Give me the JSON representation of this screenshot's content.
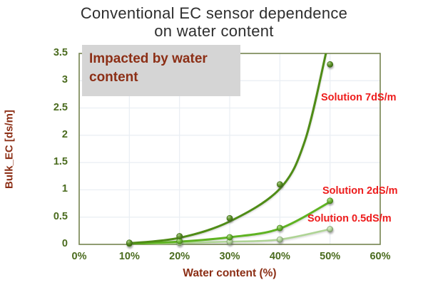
{
  "title": {
    "line1": "Conventional EC sensor dependence",
    "line2": "on water content"
  },
  "annotation": {
    "text": "Impacted by water content"
  },
  "colors": {
    "title_text": "#2e2e2e",
    "axis_title_maroon": "#8c2f16",
    "tick_olive": "#4a6b1e",
    "series_label_red": "#ee1c1c",
    "plot_border": "#75844f",
    "gridline": "#e9eef3",
    "annotation_bg": "#d5d5d5"
  },
  "chart_data": {
    "type": "scatter",
    "title": "Conventional EC sensor dependence on water content",
    "xlabel": "Water content (%)",
    "ylabel": "Bulk_EC [ds/m]",
    "xlim": [
      0,
      60
    ],
    "ylim": [
      0,
      3.5
    ],
    "grid": true,
    "x_ticks": [
      "0%",
      "10%",
      "20%",
      "30%",
      "40%",
      "50%",
      "60%"
    ],
    "y_ticks": [
      "3.5",
      "3",
      "2.5",
      "2",
      "1.5",
      "1",
      "0.5",
      "0"
    ],
    "x": [
      10,
      20,
      30,
      40,
      50
    ],
    "series": [
      {
        "name": "Solution 7dS/m",
        "color": "#4f8c14",
        "line_width": 3,
        "values": [
          0.03,
          0.15,
          0.48,
          1.1,
          3.3
        ],
        "trend": [
          [
            10,
            0.02
          ],
          [
            20,
            0.12
          ],
          [
            30,
            0.42
          ],
          [
            40,
            1.02
          ],
          [
            45,
            1.9
          ],
          [
            49.3,
            3.55
          ]
        ]
      },
      {
        "name": "Solution 2dS/m",
        "color": "#5fb321",
        "line_width": 3,
        "values": [
          0.02,
          0.06,
          0.13,
          0.3,
          0.8
        ],
        "trend": [
          [
            10,
            0.01
          ],
          [
            20,
            0.05
          ],
          [
            30,
            0.13
          ],
          [
            40,
            0.29
          ],
          [
            50,
            0.78
          ]
        ]
      },
      {
        "name": "Solution 0.5dS/m",
        "color": "#aed494",
        "line_width": 2.5,
        "values": [
          0.01,
          0.03,
          0.05,
          0.09,
          0.28
        ],
        "trend": [
          [
            10,
            0.005
          ],
          [
            20,
            0.025
          ],
          [
            30,
            0.05
          ],
          [
            40,
            0.09
          ],
          [
            50,
            0.28
          ]
        ]
      }
    ]
  }
}
